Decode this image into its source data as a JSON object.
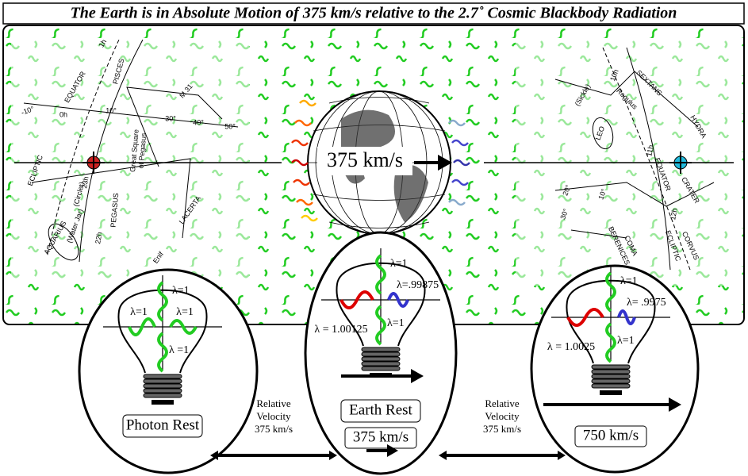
{
  "title": "The Earth is in Absolute Motion of 375 km/s relative to the 2.7˚ Cosmic Blackbody Radiation",
  "globe_label": "375 km/s",
  "sky_labels": [
    "EQUATOR",
    "PISCES",
    "ECLIPTIC",
    "(Circlet)",
    "Great Square",
    "of Pegasus",
    "M 31",
    "PEGASUS",
    "LACERTA",
    "AQUARIUS",
    "(Water Jar)",
    "Enif",
    "-10°",
    "0h",
    "10°",
    "30°",
    "40°",
    "50°",
    "23h",
    "22h",
    "1h",
    "SEXTANS",
    "(Sickle)",
    "Regulus",
    "LEO",
    "HYDRA",
    "CRATER",
    "EQUATOR",
    "ECLIPTIC",
    "COMA",
    "BERENICES",
    "CORVUS",
    "10h",
    "11h",
    "12h",
    "20°",
    "10°",
    "30°"
  ],
  "bulbs": [
    {
      "lambda_up": "λ=1",
      "lambda_left": "λ=1",
      "lambda_right": "λ=1",
      "lambda_down": "λ =1",
      "label": "Photon Rest"
    },
    {
      "lambda_up": "λ=1",
      "lambda_left": "λ = 1.00125",
      "lambda_right": "λ=.99875",
      "lambda_down": "λ=1",
      "label": "Earth Rest",
      "speed": "375 km/s"
    },
    {
      "lambda_up": "λ=1",
      "lambda_left": "λ = 1.0025",
      "lambda_right": "λ= .9975",
      "lambda_down": "λ=1",
      "speed": "750 km/s"
    }
  ],
  "relative_velocity": [
    [
      "Relative",
      "Velocity",
      "375 km/s"
    ],
    [
      "Relative",
      "Velocity",
      "375 km/s"
    ]
  ]
}
